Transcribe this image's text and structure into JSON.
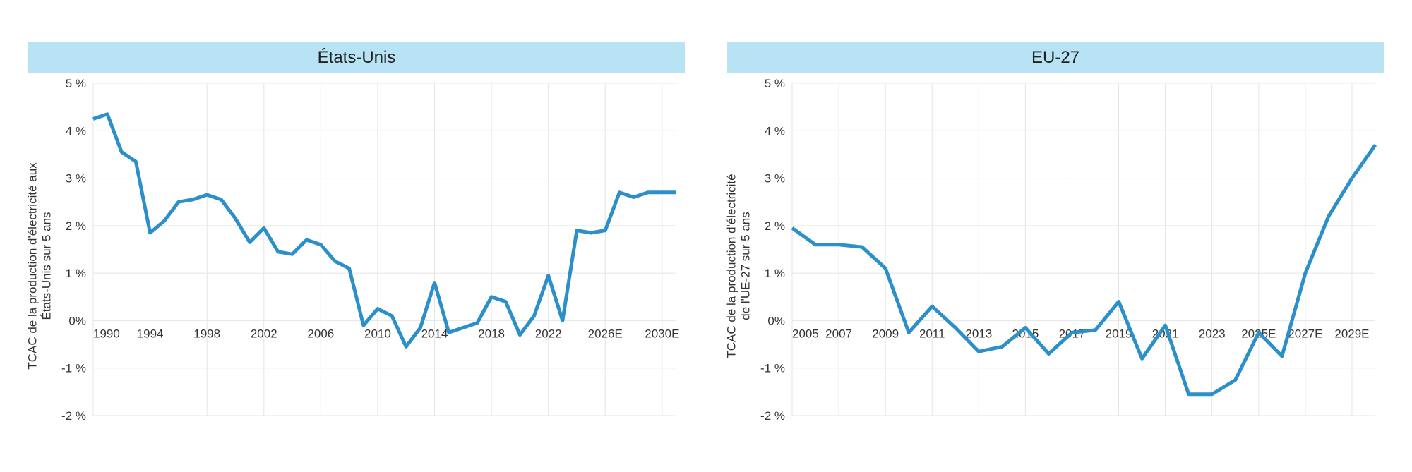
{
  "background_color": "#ffffff",
  "charts": [
    {
      "id": "us",
      "title": "États-Unis",
      "title_bg": "#b7e3f5",
      "title_fontsize": 24,
      "ylabel": "TCAC de la production d'électricité aux\nÉtats-Unis sur 5 ans",
      "label_fontsize": 17,
      "line_color": "#2b8fc9",
      "line_width": 5,
      "grid_color": "#e5e5e5",
      "ylim": [
        -2,
        5
      ],
      "ytick_step": 1,
      "ytick_format_suffix": " %",
      "ytick_zero_label": "0%",
      "xlim": [
        1990,
        2031
      ],
      "xticks_values": [
        1990,
        1994,
        1998,
        2002,
        2006,
        2010,
        2014,
        2018,
        2022,
        2026,
        2030
      ],
      "xticks_labels": [
        "1990",
        "1994",
        "1998",
        "2002",
        "2006",
        "2010",
        "2014",
        "2018",
        "2022",
        "2026E",
        "2030E"
      ],
      "x": [
        1990,
        1991,
        1992,
        1993,
        1994,
        1995,
        1996,
        1997,
        1998,
        1999,
        2000,
        2001,
        2002,
        2003,
        2004,
        2005,
        2006,
        2007,
        2008,
        2009,
        2010,
        2011,
        2012,
        2013,
        2014,
        2015,
        2016,
        2017,
        2018,
        2019,
        2020,
        2021,
        2022,
        2023,
        2024,
        2025,
        2026,
        2027,
        2028,
        2029,
        2030,
        2031
      ],
      "y": [
        4.25,
        4.35,
        3.55,
        3.35,
        1.85,
        2.1,
        2.5,
        2.55,
        2.65,
        2.55,
        2.15,
        1.65,
        1.95,
        1.45,
        1.4,
        1.7,
        1.6,
        1.25,
        1.1,
        -0.1,
        0.25,
        0.1,
        -0.55,
        -0.15,
        0.8,
        -0.25,
        -0.15,
        -0.05,
        0.5,
        0.4,
        -0.3,
        0.1,
        0.95,
        0.0,
        1.9,
        1.85,
        1.9,
        2.7,
        2.6,
        2.7,
        2.7,
        2.7
      ]
    },
    {
      "id": "eu",
      "title": "EU-27",
      "title_bg": "#b7e3f5",
      "title_fontsize": 24,
      "ylabel": "TCAC de la production d'électricité\nde l'UE-27 sur 5 ans",
      "label_fontsize": 17,
      "line_color": "#2b8fc9",
      "line_width": 5,
      "grid_color": "#e5e5e5",
      "ylim": [
        -2,
        5
      ],
      "ytick_step": 1,
      "ytick_format_suffix": " %",
      "ytick_zero_label": "0%",
      "xlim": [
        2005,
        2030
      ],
      "xticks_values": [
        2005,
        2007,
        2009,
        2011,
        2013,
        2015,
        2017,
        2019,
        2021,
        2023,
        2025,
        2027,
        2029
      ],
      "xticks_labels": [
        "2005",
        "2007",
        "2009",
        "2011",
        "2013",
        "2015",
        "2017",
        "2019",
        "2021",
        "2023",
        "2025E",
        "2027E",
        "2029E"
      ],
      "x": [
        2005,
        2006,
        2007,
        2008,
        2009,
        2010,
        2011,
        2012,
        2013,
        2014,
        2015,
        2016,
        2017,
        2018,
        2019,
        2020,
        2021,
        2022,
        2023,
        2024,
        2025,
        2026,
        2027,
        2028,
        2029,
        2030
      ],
      "y": [
        1.95,
        1.6,
        1.6,
        1.55,
        1.1,
        -0.25,
        0.3,
        -0.15,
        -0.65,
        -0.55,
        -0.15,
        -0.7,
        -0.25,
        -0.2,
        0.4,
        -0.8,
        -0.1,
        -1.55,
        -1.55,
        -1.25,
        -0.25,
        -0.75,
        1.0,
        2.2,
        3.0,
        3.7
      ]
    }
  ]
}
